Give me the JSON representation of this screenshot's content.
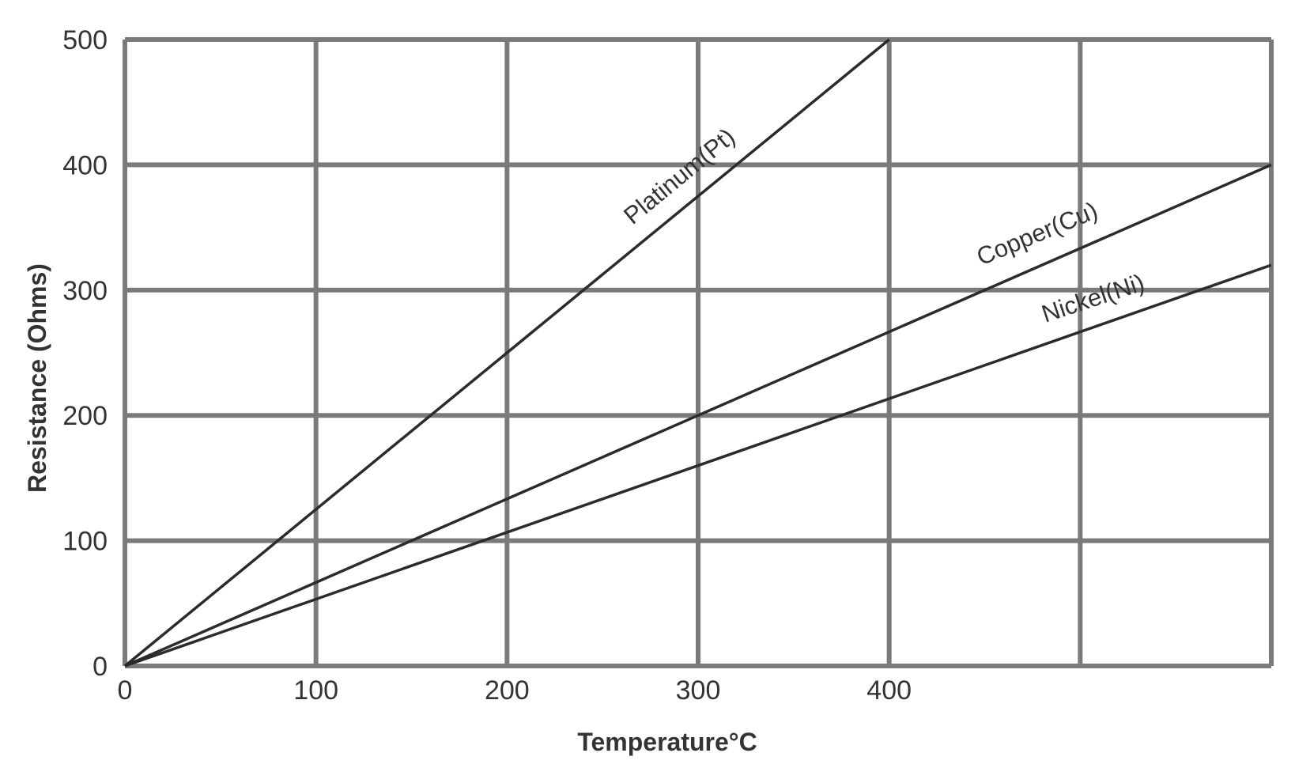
{
  "chart_data": {
    "type": "line",
    "title": "",
    "xlabel": "Temperature°C",
    "ylabel": "Resistance (Ohms)",
    "xlim": [
      0,
      600
    ],
    "ylim": [
      0,
      500
    ],
    "x_ticks": [
      0,
      100,
      200,
      300,
      400
    ],
    "x_tick_labels": [
      "0",
      "100",
      "200",
      "300",
      "400"
    ],
    "x_gridlines": [
      0,
      100,
      200,
      300,
      400,
      500,
      600
    ],
    "y_ticks": [
      0,
      100,
      200,
      300,
      400,
      500
    ],
    "y_tick_labels": [
      "0",
      "100",
      "200",
      "300",
      "400",
      "500"
    ],
    "grid": true,
    "series": [
      {
        "name": "Platinum(Pt)",
        "x": [
          0,
          400
        ],
        "y": [
          0,
          500
        ]
      },
      {
        "name": "Copper(Cu)",
        "x": [
          0,
          600
        ],
        "y": [
          0,
          400
        ]
      },
      {
        "name": "Nickel(Ni)",
        "x": [
          0,
          600
        ],
        "y": [
          0,
          320
        ]
      }
    ]
  }
}
